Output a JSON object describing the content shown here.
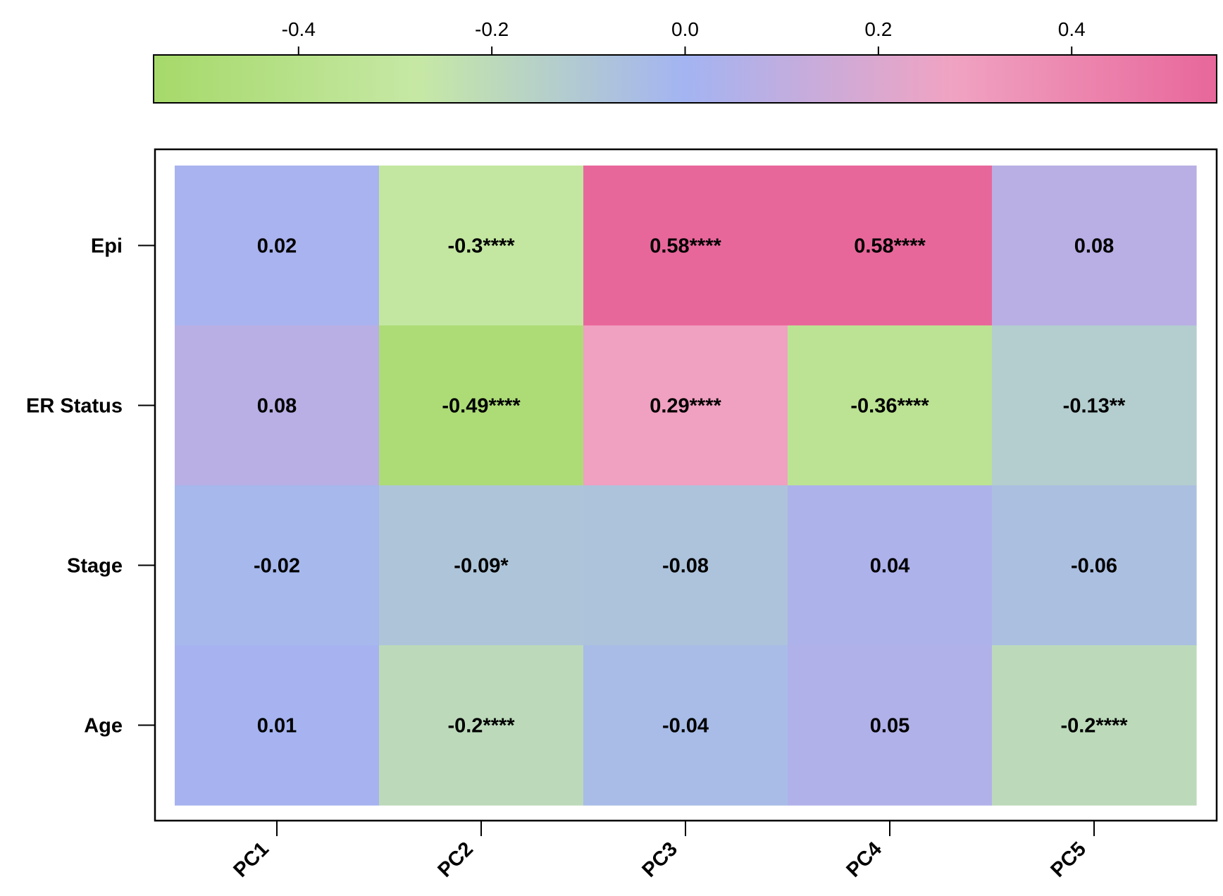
{
  "chart_data": {
    "type": "heatmap",
    "rows": [
      "Epi",
      "ER Status",
      "Stage",
      "Age"
    ],
    "columns": [
      "PC1",
      "PC2",
      "PC3",
      "PC4",
      "PC5"
    ],
    "values": [
      [
        0.02,
        -0.3,
        0.58,
        0.58,
        0.08
      ],
      [
        0.08,
        -0.49,
        0.29,
        -0.36,
        -0.13
      ],
      [
        -0.02,
        -0.09,
        -0.08,
        0.04,
        -0.06
      ],
      [
        0.01,
        -0.2,
        -0.04,
        0.05,
        -0.2
      ]
    ],
    "cell_labels": [
      [
        "0.02",
        "-0.3****",
        "0.58****",
        "0.58****",
        "0.08"
      ],
      [
        "0.08",
        "-0.49****",
        "0.29****",
        "-0.36****",
        "-0.13**"
      ],
      [
        "-0.02",
        "-0.09*",
        "-0.08",
        "0.04",
        "-0.06"
      ],
      [
        "0.01",
        "-0.2****",
        "-0.04",
        "0.05",
        "-0.2****"
      ]
    ],
    "colorbar": {
      "range": [
        -0.55,
        0.55
      ],
      "ticks": [
        -0.4,
        -0.2,
        0.0,
        0.2,
        0.4
      ],
      "tick_labels": [
        "-0.4",
        "-0.2",
        "0.0",
        "0.2",
        "0.4"
      ],
      "colors": [
        "#a6d96a",
        "#c6e8a5",
        "#a3b4f2",
        "#f0a3c2",
        "#e8679b"
      ],
      "position": "top"
    }
  }
}
